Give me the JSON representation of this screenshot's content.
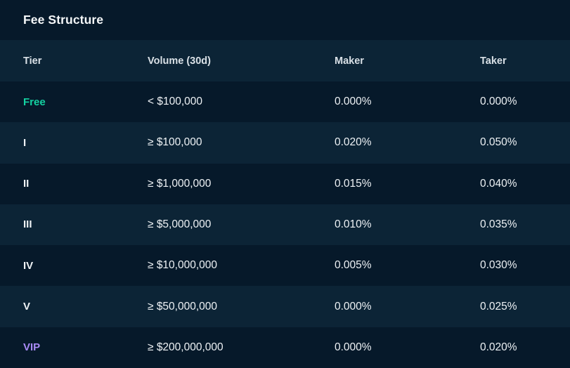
{
  "title": "Fee Structure",
  "colors": {
    "background_dark": "#06192a",
    "background_light": "#0c2436",
    "text_primary": "#eef2f5",
    "text_header": "#d9e0e6",
    "tier_free": "#14d2a2",
    "tier_vip": "#a98bf7"
  },
  "table": {
    "columns": {
      "tier": "Tier",
      "volume": "Volume (30d)",
      "maker": "Maker",
      "taker": "Taker"
    },
    "rows": [
      {
        "tier": "Free",
        "tier_color": "#14d2a2",
        "volume": "< $100,000",
        "maker": "0.000%",
        "taker": "0.000%"
      },
      {
        "tier": "I",
        "tier_color": "",
        "volume": "≥ $100,000",
        "maker": "0.020%",
        "taker": "0.050%"
      },
      {
        "tier": "II",
        "tier_color": "",
        "volume": "≥ $1,000,000",
        "maker": "0.015%",
        "taker": "0.040%"
      },
      {
        "tier": "III",
        "tier_color": "",
        "volume": "≥ $5,000,000",
        "maker": "0.010%",
        "taker": "0.035%"
      },
      {
        "tier": "IV",
        "tier_color": "",
        "volume": "≥ $10,000,000",
        "maker": "0.005%",
        "taker": "0.030%"
      },
      {
        "tier": "V",
        "tier_color": "",
        "volume": "≥ $50,000,000",
        "maker": "0.000%",
        "taker": "0.025%"
      },
      {
        "tier": "VIP",
        "tier_color": "#a98bf7",
        "volume": "≥ $200,000,000",
        "maker": "0.000%",
        "taker": "0.020%"
      }
    ]
  }
}
